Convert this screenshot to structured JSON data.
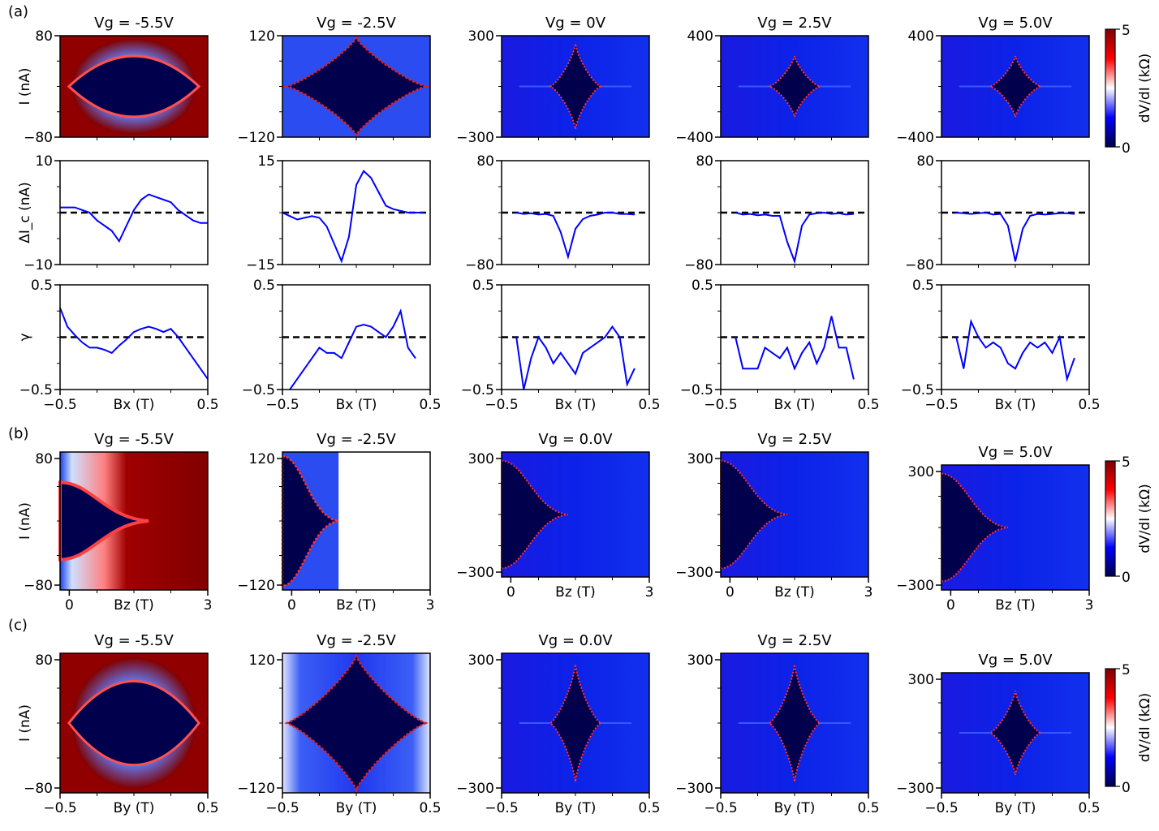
{
  "figure": {
    "panel_labels": [
      "(a)",
      "(b)",
      "(c)"
    ],
    "colorbar": {
      "label": "dV/dI (kΩ)",
      "ticks": [
        "0",
        "5"
      ],
      "colors": [
        "#00004d",
        "#0000ff",
        "#ffffff",
        "#ff0000",
        "#800000"
      ]
    },
    "dashed_color": "#000000",
    "line_color": "#0000ff"
  },
  "chart_data": [
    {
      "type": "heatmap",
      "group": "a",
      "row": "map",
      "titles": [
        "Vg = -5.5V",
        "Vg = -2.5V",
        "Vg = 0V",
        "Vg = 2.5V",
        "Vg = 5.0V"
      ],
      "ylabel": "I (nA)",
      "xlim": [
        -0.5,
        0.5
      ],
      "ylims": [
        [
          -80,
          80
        ],
        [
          -120,
          120
        ],
        [
          -300,
          300
        ],
        [
          -400,
          400
        ],
        [
          -400,
          400
        ]
      ],
      "yticks": [
        [
          "80",
          "−80"
        ],
        [
          "120",
          "−120"
        ],
        [
          "300",
          "−300"
        ],
        [
          "400",
          "−400"
        ],
        [
          "400",
          "−400"
        ]
      ]
    },
    {
      "type": "line",
      "group": "a",
      "row": "delta_ic",
      "ylabel": "ΔI_c (nA)",
      "xlim": [
        -0.5,
        0.5
      ],
      "ylims": [
        [
          -10,
          10
        ],
        [
          -15,
          15
        ],
        [
          -80,
          80
        ],
        [
          -80,
          80
        ],
        [
          -80,
          80
        ]
      ],
      "yticks": [
        [
          "10",
          "−10"
        ],
        [
          "15",
          "−15"
        ],
        [
          "80",
          "−80"
        ],
        [
          "80",
          "−80"
        ],
        [
          "80",
          "−80"
        ]
      ],
      "series": [
        {
          "x": [
            -0.5,
            -0.45,
            -0.4,
            -0.35,
            -0.3,
            -0.25,
            -0.2,
            -0.15,
            -0.1,
            -0.05,
            0,
            0.05,
            0.1,
            0.15,
            0.2,
            0.25,
            0.3,
            0.35,
            0.4,
            0.45,
            0.5
          ],
          "y": [
            1,
            1,
            1,
            0.5,
            0,
            -1.5,
            -2.5,
            -3.5,
            -5.5,
            -2.5,
            0.5,
            2.5,
            3.5,
            3,
            2.5,
            2,
            0.5,
            -0.5,
            -1.5,
            -2,
            -2
          ]
        },
        {
          "x": [
            -0.5,
            -0.45,
            -0.4,
            -0.35,
            -0.3,
            -0.25,
            -0.2,
            -0.15,
            -0.1,
            -0.05,
            0,
            0.05,
            0.1,
            0.15,
            0.2,
            0.25,
            0.3,
            0.35,
            0.4,
            0.45
          ],
          "y": [
            0,
            -1,
            -2,
            -1.5,
            -1,
            -1.5,
            -4,
            -9,
            -14,
            -7,
            8,
            12,
            10,
            6,
            2,
            1,
            0.5,
            0,
            0,
            0
          ]
        },
        {
          "x": [
            -0.4,
            -0.35,
            -0.3,
            -0.25,
            -0.2,
            -0.15,
            -0.1,
            -0.05,
            0,
            0.05,
            0.1,
            0.15,
            0.2,
            0.25,
            0.3,
            0.35,
            0.4
          ],
          "y": [
            0,
            -2,
            -1,
            -3,
            -2,
            -5,
            -30,
            -68,
            -25,
            -10,
            -5,
            -3,
            0,
            0,
            -2,
            -2,
            -3
          ]
        },
        {
          "x": [
            -0.4,
            -0.35,
            -0.3,
            -0.25,
            -0.2,
            -0.15,
            -0.1,
            -0.05,
            0,
            0.05,
            0.1,
            0.15,
            0.2,
            0.25,
            0.3,
            0.35,
            0.4
          ],
          "y": [
            0,
            -3,
            -2,
            -4,
            -3,
            -5,
            -5,
            -45,
            -75,
            -20,
            -3,
            -1,
            0,
            -2,
            -1,
            -3,
            -2
          ]
        },
        {
          "x": [
            -0.4,
            -0.35,
            -0.3,
            -0.25,
            -0.2,
            -0.15,
            -0.1,
            -0.05,
            0,
            0.05,
            0.1,
            0.15,
            0.2,
            0.25,
            0.3,
            0.35,
            0.4
          ],
          "y": [
            0,
            -1,
            -2,
            -1,
            0,
            -3,
            -2,
            -20,
            -75,
            -25,
            -5,
            -2,
            -3,
            -2,
            -1,
            -1,
            -2
          ]
        }
      ]
    },
    {
      "type": "line",
      "group": "a",
      "row": "gamma",
      "ylabel": "γ",
      "xlabel": "Bx (T)",
      "xlim": [
        -0.5,
        0.5
      ],
      "ylim": [
        -0.5,
        0.5
      ],
      "xticks": [
        "−0.5",
        "0.5"
      ],
      "yticks": [
        "0.5",
        "−0.5"
      ],
      "series": [
        {
          "x": [
            -0.5,
            -0.45,
            -0.4,
            -0.35,
            -0.3,
            -0.25,
            -0.2,
            -0.15,
            -0.1,
            -0.05,
            0,
            0.05,
            0.1,
            0.15,
            0.2,
            0.25,
            0.3,
            0.35,
            0.4,
            0.45,
            0.5
          ],
          "y": [
            0.28,
            0.1,
            0.02,
            -0.05,
            -0.1,
            -0.1,
            -0.12,
            -0.15,
            -0.08,
            -0.02,
            0.05,
            0.08,
            0.1,
            0.08,
            0.05,
            0.08,
            0.0,
            -0.1,
            -0.2,
            -0.3,
            -0.4
          ]
        },
        {
          "x": [
            -0.45,
            -0.4,
            -0.35,
            -0.3,
            -0.25,
            -0.2,
            -0.15,
            -0.1,
            -0.05,
            0,
            0.05,
            0.1,
            0.15,
            0.2,
            0.25,
            0.3,
            0.35,
            0.4
          ],
          "y": [
            -0.5,
            -0.4,
            -0.3,
            -0.2,
            -0.1,
            -0.15,
            -0.15,
            -0.2,
            -0.05,
            0.1,
            0.12,
            0.1,
            0.05,
            0.0,
            0.1,
            0.25,
            -0.1,
            -0.2
          ]
        },
        {
          "x": [
            -0.4,
            -0.35,
            -0.3,
            -0.25,
            -0.2,
            -0.15,
            -0.1,
            -0.05,
            0,
            0.05,
            0.1,
            0.15,
            0.2,
            0.25,
            0.3,
            0.35,
            0.4
          ],
          "y": [
            0,
            -0.5,
            -0.2,
            0,
            -0.1,
            -0.25,
            -0.15,
            -0.25,
            -0.35,
            -0.15,
            -0.1,
            -0.05,
            0.0,
            0.1,
            0,
            -0.45,
            -0.3
          ]
        },
        {
          "x": [
            -0.4,
            -0.35,
            -0.3,
            -0.25,
            -0.2,
            -0.15,
            -0.1,
            -0.05,
            0,
            0.05,
            0.1,
            0.15,
            0.2,
            0.25,
            0.3,
            0.35,
            0.4
          ],
          "y": [
            0,
            -0.3,
            -0.3,
            -0.3,
            -0.1,
            -0.15,
            -0.2,
            -0.1,
            -0.3,
            -0.15,
            -0.05,
            -0.25,
            -0.1,
            0.2,
            -0.1,
            -0.1,
            -0.4
          ]
        },
        {
          "x": [
            -0.4,
            -0.35,
            -0.3,
            -0.25,
            -0.2,
            -0.15,
            -0.1,
            -0.05,
            0,
            0.05,
            0.1,
            0.15,
            0.2,
            0.25,
            0.3,
            0.35,
            0.4
          ],
          "y": [
            0,
            -0.3,
            0.15,
            0,
            -0.1,
            -0.05,
            -0.1,
            -0.25,
            -0.3,
            -0.15,
            -0.05,
            -0.1,
            -0.05,
            -0.15,
            0,
            -0.4,
            -0.2
          ]
        }
      ]
    },
    {
      "type": "heatmap",
      "group": "b",
      "row": "map",
      "titles": [
        "Vg = -5.5V",
        "Vg = -2.5V",
        "Vg = 0.0V",
        "Vg = 2.5V",
        "Vg = 5.0V"
      ],
      "xlabel": "Bz (T)",
      "ylabel": "I (nA)",
      "xlim": [
        -0.2,
        3
      ],
      "xticks": [
        "0",
        "3"
      ],
      "yticks": [
        [
          "80",
          "−80"
        ],
        [
          "120",
          "−120"
        ],
        [
          "300",
          "−300"
        ],
        [
          "300",
          "−300"
        ],
        [
          "300",
          "−300"
        ]
      ]
    },
    {
      "type": "heatmap",
      "group": "c",
      "row": "map",
      "titles": [
        "Vg = -5.5V",
        "Vg = -2.5V",
        "Vg = 0.0V",
        "Vg = 2.5V",
        "Vg = 5.0V"
      ],
      "xlabel": "By (T)",
      "ylabel": "I (nA)",
      "xlim": [
        -0.5,
        0.5
      ],
      "xticks": [
        "−0.5",
        "0.5"
      ],
      "yticks": [
        [
          "80",
          "−80"
        ],
        [
          "120",
          "−120"
        ],
        [
          "300",
          "−300"
        ],
        [
          "300",
          "−300"
        ],
        [
          "300",
          "−300"
        ]
      ]
    }
  ]
}
